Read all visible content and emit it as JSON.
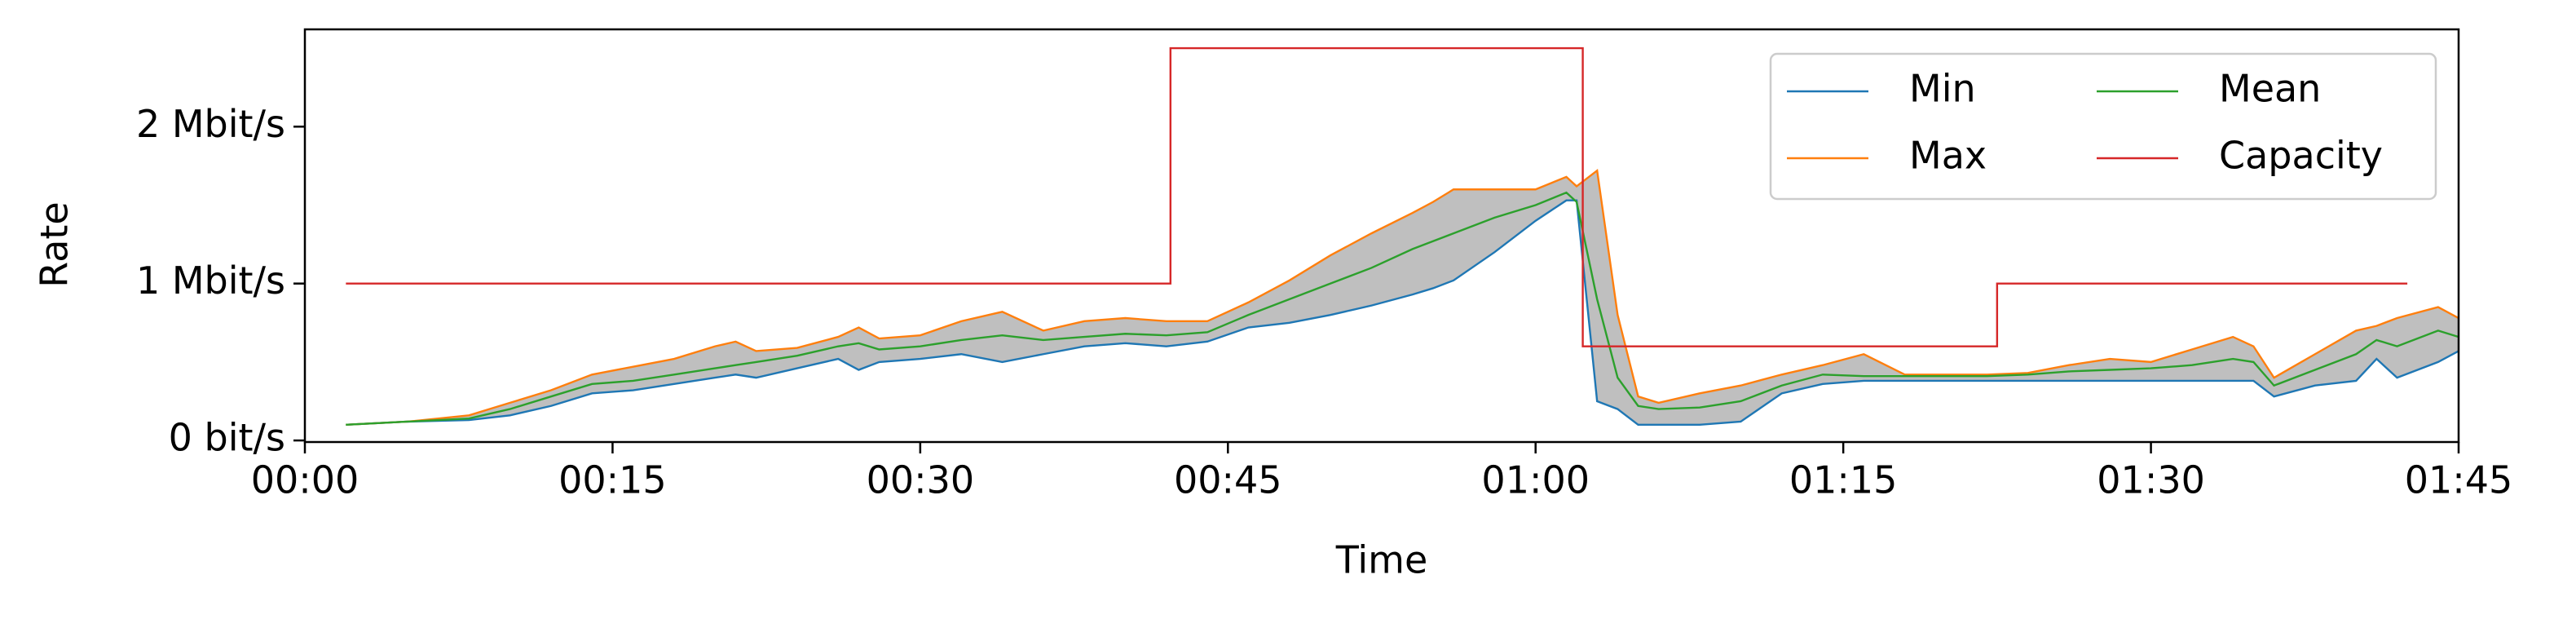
{
  "chart_data": {
    "type": "line",
    "x_label": "Time",
    "y_label": "Rate",
    "x": [
      2,
      5,
      8,
      10,
      12,
      14,
      16,
      18,
      20,
      21,
      22,
      24,
      26,
      27,
      28,
      30,
      32,
      34,
      36,
      38,
      40,
      42,
      44,
      46,
      48,
      50,
      52,
      54,
      55,
      56,
      58,
      60,
      61.5,
      62,
      63,
      64,
      65,
      66,
      68,
      70,
      72,
      74,
      76,
      78,
      80,
      82,
      84,
      86,
      88,
      90,
      92,
      94,
      95,
      96,
      98,
      100,
      101,
      102,
      104,
      105
    ],
    "series": [
      {
        "name": "Min",
        "color": "#1f77b4",
        "values": [
          0.1,
          0.12,
          0.13,
          0.16,
          0.22,
          0.3,
          0.32,
          0.36,
          0.4,
          0.42,
          0.4,
          0.46,
          0.52,
          0.45,
          0.5,
          0.52,
          0.55,
          0.5,
          0.55,
          0.6,
          0.62,
          0.6,
          0.63,
          0.72,
          0.75,
          0.8,
          0.86,
          0.93,
          0.97,
          1.02,
          1.2,
          1.4,
          1.53,
          1.53,
          0.25,
          0.2,
          0.1,
          0.1,
          0.1,
          0.12,
          0.3,
          0.36,
          0.38,
          0.38,
          0.38,
          0.38,
          0.38,
          0.38,
          0.38,
          0.38,
          0.38,
          0.38,
          0.38,
          0.28,
          0.35,
          0.38,
          0.52,
          0.4,
          0.5,
          0.57
        ]
      },
      {
        "name": "Max",
        "color": "#ff7f0e",
        "values": [
          0.1,
          0.12,
          0.16,
          0.24,
          0.32,
          0.42,
          0.47,
          0.52,
          0.6,
          0.63,
          0.57,
          0.59,
          0.66,
          0.72,
          0.65,
          0.67,
          0.76,
          0.82,
          0.7,
          0.76,
          0.78,
          0.76,
          0.76,
          0.88,
          1.02,
          1.18,
          1.32,
          1.45,
          1.52,
          1.6,
          1.6,
          1.6,
          1.68,
          1.62,
          1.72,
          0.8,
          0.28,
          0.24,
          0.3,
          0.35,
          0.42,
          0.48,
          0.55,
          0.42,
          0.42,
          0.42,
          0.43,
          0.48,
          0.52,
          0.5,
          0.58,
          0.66,
          0.6,
          0.4,
          0.55,
          0.7,
          0.73,
          0.78,
          0.85,
          0.78
        ]
      },
      {
        "name": "Mean",
        "color": "#2ca02c",
        "values": [
          0.1,
          0.12,
          0.14,
          0.2,
          0.28,
          0.36,
          0.38,
          0.42,
          0.46,
          0.48,
          0.5,
          0.54,
          0.6,
          0.62,
          0.58,
          0.6,
          0.64,
          0.67,
          0.64,
          0.66,
          0.68,
          0.67,
          0.69,
          0.8,
          0.9,
          1.0,
          1.1,
          1.22,
          1.27,
          1.32,
          1.42,
          1.5,
          1.58,
          1.52,
          0.9,
          0.4,
          0.22,
          0.2,
          0.21,
          0.25,
          0.35,
          0.42,
          0.41,
          0.41,
          0.41,
          0.41,
          0.42,
          0.44,
          0.45,
          0.46,
          0.48,
          0.52,
          0.5,
          0.35,
          0.45,
          0.55,
          0.64,
          0.6,
          0.7,
          0.66
        ]
      },
      {
        "name": "Capacity",
        "color": "#d62728",
        "x": [
          2,
          42.2,
          42.2,
          62.3,
          62.3,
          82.5,
          82.5,
          102.5
        ],
        "values": [
          1,
          1,
          2.5,
          2.5,
          0.6,
          0.6,
          1,
          1
        ]
      }
    ],
    "band": {
      "lower": 0,
      "upper": 1,
      "color": "#bfbfbf"
    },
    "xlim": [
      0,
      105
    ],
    "xticks": [
      {
        "value": 0,
        "label": "00:00"
      },
      {
        "value": 15,
        "label": "00:15"
      },
      {
        "value": 30,
        "label": "00:30"
      },
      {
        "value": 45,
        "label": "00:45"
      },
      {
        "value": 60,
        "label": "01:00"
      },
      {
        "value": 75,
        "label": "01:15"
      },
      {
        "value": 90,
        "label": "01:30"
      },
      {
        "value": 105,
        "label": "01:45"
      }
    ],
    "ylim": [
      -0.01,
      2.62
    ],
    "yticks": [
      {
        "value": 0,
        "label": "0 bit/s"
      },
      {
        "value": 1,
        "label": "1 Mbit/s"
      },
      {
        "value": 2,
        "label": "2 Mbit/s"
      }
    ],
    "legend": "upper right",
    "legend_columns": 2
  }
}
